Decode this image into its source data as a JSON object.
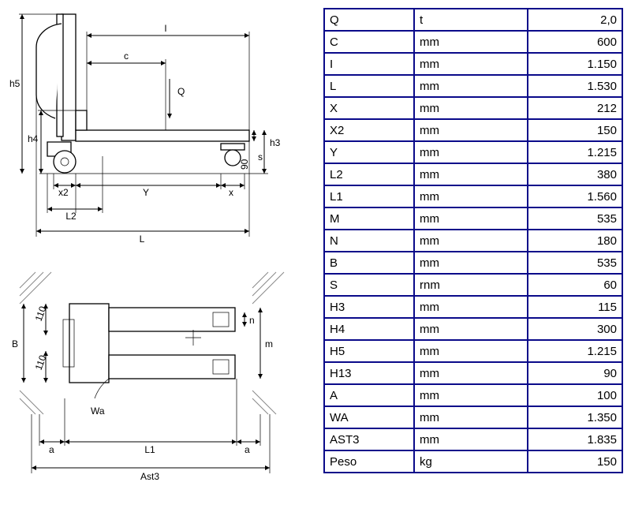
{
  "table": {
    "border_color": "#0a0a8a",
    "background": "#ffffff",
    "text_color": "#000000",
    "font_size": 15,
    "columns": [
      "param",
      "unit",
      "value"
    ],
    "rows": [
      {
        "param": "Q",
        "unit": "t",
        "value": "2,0"
      },
      {
        "param": "C",
        "unit": "mm",
        "value": "600"
      },
      {
        "param": "I",
        "unit": "mm",
        "value": "1.150"
      },
      {
        "param": "L",
        "unit": "mm",
        "value": "1.530"
      },
      {
        "param": "X",
        "unit": "mm",
        "value": "212"
      },
      {
        "param": "X2",
        "unit": "mm",
        "value": "150"
      },
      {
        "param": "Y",
        "unit": "mm",
        "value": "1.215"
      },
      {
        "param": "L2",
        "unit": "mm",
        "value": "380"
      },
      {
        "param": "L1",
        "unit": "mm",
        "value": "1.560"
      },
      {
        "param": "M",
        "unit": "mm",
        "value": "535"
      },
      {
        "param": "N",
        "unit": "mm",
        "value": "180"
      },
      {
        "param": "B",
        "unit": "mm",
        "value": "535"
      },
      {
        "param": "S",
        "unit": "rnm",
        "value": "60"
      },
      {
        "param": "H3",
        "unit": "mm",
        "value": "115"
      },
      {
        "param": "H4",
        "unit": "mm",
        "value": "300"
      },
      {
        "param": "H5",
        "unit": "mm",
        "value": "1.215"
      },
      {
        "param": "H13",
        "unit": "mm",
        "value": "90"
      },
      {
        "param": "A",
        "unit": "mm",
        "value": "100"
      },
      {
        "param": "WA",
        "unit": "mm",
        "value": "1.350"
      },
      {
        "param": "AST3",
        "unit": "mm",
        "value": "1.835"
      },
      {
        "param": "Peso",
        "unit": "kg",
        "value": "150"
      }
    ]
  },
  "diagram": {
    "labels": {
      "h5": "h5",
      "h4": "h4",
      "h3": "h3",
      "Q": "Q",
      "c": "c",
      "l": "l",
      "L": "L",
      "Y": "Y",
      "x": "x",
      "x2": "x2",
      "s": "s",
      "n90": "90",
      "L2": "L2",
      "L1": "L1",
      "Ast3": "Ast3",
      "a": "a",
      "Wa": "Wa",
      "B": "B",
      "n110a": "110",
      "n110b": "110",
      "m": "m",
      "n": "n"
    },
    "colors": {
      "line": "#000000",
      "hatch": "#888888",
      "bg": "#ffffff"
    }
  }
}
